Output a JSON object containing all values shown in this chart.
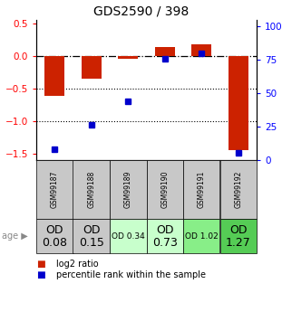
{
  "title": "GDS2590 / 398",
  "samples": [
    "GSM99187",
    "GSM99188",
    "GSM99189",
    "GSM99190",
    "GSM99191",
    "GSM99192"
  ],
  "log2_ratio": [
    -0.62,
    -0.35,
    -0.05,
    0.13,
    0.18,
    -1.45
  ],
  "percentile_rank": [
    8,
    25,
    42,
    72,
    76,
    5
  ],
  "ylim_left": [
    -1.6,
    0.55
  ],
  "ylim_right": [
    0,
    105
  ],
  "yticks_left": [
    0.5,
    0,
    -0.5,
    -1.0,
    -1.5
  ],
  "yticks_right": [
    100,
    75,
    50,
    25,
    0
  ],
  "bar_color": "#cc2200",
  "dot_color": "#0000cc",
  "age_labels": [
    "OD\n0.08",
    "OD\n0.15",
    "OD 0.34",
    "OD\n0.73",
    "OD 1.02",
    "OD\n1.27"
  ],
  "age_colors": [
    "#c8c8c8",
    "#c8c8c8",
    "#c8ffcc",
    "#c8ffcc",
    "#88ee88",
    "#55cc55"
  ],
  "age_fontsizes": [
    9,
    9,
    6.5,
    9,
    6.5,
    9
  ],
  "sample_bg": "#c8c8c8",
  "title_fontsize": 10
}
